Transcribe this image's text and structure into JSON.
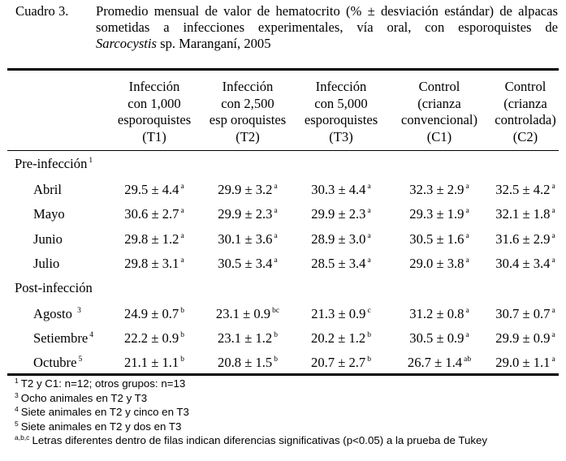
{
  "caption": {
    "number": "Cuadro 3.",
    "line1": "Promedio mensual de valor de hematocrito (% ± desviación estándar) de alpacas",
    "line2": "sometidas a infecciones experimentales, vía oral, con esporoquistes de",
    "line3_italic": "Sarcocystis",
    "line3_rest": " sp. Maranganí, 2005"
  },
  "headers": [
    [
      "Infección",
      "con 1,000",
      "esporoquistes",
      "(T1)"
    ],
    [
      "Infección",
      "con 2,500",
      "esp oroquistes",
      "(T2)"
    ],
    [
      "Infección",
      "con 5,000",
      "esporoquistes",
      "(T3)"
    ],
    [
      "Control",
      "(crianza",
      "convencional)",
      "(C1)"
    ],
    [
      "Control",
      "(crianza",
      "controlada)",
      "(C2)"
    ]
  ],
  "sections": [
    {
      "title": "Pre-infección",
      "title_sup": "1",
      "rows": [
        {
          "label": "Abril",
          "label_sup": "",
          "cells": [
            {
              "v": "29.5 ± 4.4",
              "s": "a"
            },
            {
              "v": "29.9 ± 3.2",
              "s": "a"
            },
            {
              "v": "30.3 ± 4.4",
              "s": "a"
            },
            {
              "v": "32.3 ± 2.9",
              "s": "a"
            },
            {
              "v": "32.5 ± 4.2",
              "s": "a"
            }
          ]
        },
        {
          "label": "Mayo",
          "label_sup": "",
          "cells": [
            {
              "v": "30.6 ± 2.7",
              "s": "a"
            },
            {
              "v": "29.9 ± 2.3",
              "s": "a"
            },
            {
              "v": "29.9 ± 2.3",
              "s": "a"
            },
            {
              "v": "29.3 ± 1.9",
              "s": "a"
            },
            {
              "v": "32.1 ± 1.8",
              "s": "a"
            }
          ]
        },
        {
          "label": "Junio",
          "label_sup": "",
          "cells": [
            {
              "v": "29.8 ± 1.2",
              "s": "a"
            },
            {
              "v": "30.1 ± 3.6",
              "s": "a"
            },
            {
              "v": "28.9 ± 3.0",
              "s": "a"
            },
            {
              "v": "30.5 ± 1.6",
              "s": "a"
            },
            {
              "v": "31.6 ± 2.9",
              "s": "a"
            }
          ]
        },
        {
          "label": "Julio",
          "label_sup": "",
          "cells": [
            {
              "v": "29.8 ± 3.1",
              "s": "a"
            },
            {
              "v": "30.5 ± 3.4",
              "s": "a"
            },
            {
              "v": "28.5 ± 3.4",
              "s": "a"
            },
            {
              "v": "29.0 ± 3.8",
              "s": "a"
            },
            {
              "v": "30.4 ± 3.4",
              "s": "a"
            }
          ]
        }
      ]
    },
    {
      "title": "Post-infección",
      "title_sup": "",
      "rows": [
        {
          "label": "Agosto ",
          "label_sup": "3",
          "cells": [
            {
              "v": "24.9 ± 0.7",
              "s": "b"
            },
            {
              "v": "23.1 ± 0.9",
              "s": "bc"
            },
            {
              "v": "21.3 ± 0.9",
              "s": "c"
            },
            {
              "v": "31.2 ± 0.8",
              "s": "a"
            },
            {
              "v": "30.7 ± 0.7",
              "s": "a"
            }
          ]
        },
        {
          "label": "Setiembre",
          "label_sup": "4",
          "cells": [
            {
              "v": "22.2 ± 0.9",
              "s": "b"
            },
            {
              "v": "23.1 ± 1.2",
              "s": "b"
            },
            {
              "v": "20.2 ± 1.2",
              "s": "b"
            },
            {
              "v": "30.5 ± 0.9",
              "s": "a"
            },
            {
              "v": "29.9 ± 0.9",
              "s": "a"
            }
          ]
        },
        {
          "label": "Octubre",
          "label_sup": "5",
          "cells": [
            {
              "v": "21.1 ± 1.1",
              "s": "b"
            },
            {
              "v": "20.8 ± 1.5",
              "s": "b"
            },
            {
              "v": "20.7 ± 2.7",
              "s": "b"
            },
            {
              "v": "26.7 ± 1.4",
              "s": "ab"
            },
            {
              "v": "29.0 ± 1.1",
              "s": "a"
            }
          ]
        }
      ]
    }
  ],
  "footnotes": [
    {
      "mark": "1",
      "text": "T2 y C1: n=12; otros grupos: n=13"
    },
    {
      "mark": "3",
      "text": "Ocho animales en T2 y T3"
    },
    {
      "mark": "4",
      "text": "Siete animales en T2 y cinco en T3"
    },
    {
      "mark": "5",
      "text": "Siete animales en T2 y dos en T3"
    },
    {
      "mark": "a,b,c",
      "text": "Letras diferentes dentro de filas indican diferencias significativas (p<0.05) a la prueba de Tukey"
    }
  ]
}
